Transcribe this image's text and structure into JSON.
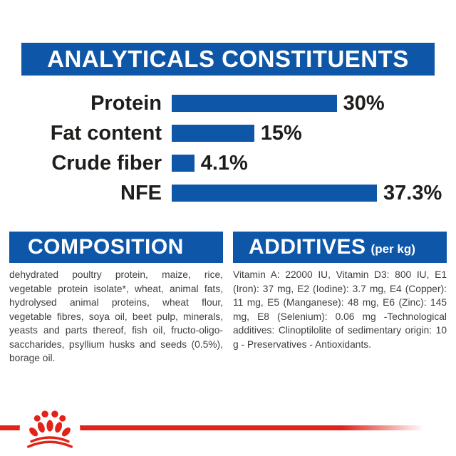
{
  "colors": {
    "blue": "#0e56a8",
    "red": "#e2231a",
    "heading_text": "#ffffff",
    "chart_text": "#1d1d1b",
    "body_text": "#3e3e3e"
  },
  "analyticals": {
    "title": "ANALYTICALS CONSTITUENTS"
  },
  "chart_data": {
    "type": "bar",
    "orientation": "horizontal",
    "categories": [
      "Protein",
      "Fat content",
      "Crude fiber",
      "NFE"
    ],
    "values": [
      30,
      15,
      4.1,
      37.3
    ],
    "value_labels": [
      "30%",
      "15%",
      "4.1%",
      "37.3%"
    ],
    "unit": "%",
    "xlim": [
      0,
      40
    ],
    "bar_color": "#0e56a8",
    "title": "ANALYTICALS CONSTITUENTS",
    "grid": false,
    "legend_position": "none"
  },
  "composition": {
    "title": "COMPOSITION",
    "text": "dehydrated poultry protein, maize, rice, vegetable protein isolate*, wheat, animal fats, hydrolysed animal proteins, wheat flour, vegetable fibres, soya oil, beet pulp, minerals, yeasts and parts thereof, fish oil, fructo-oligo-saccharides, psyllium husks and seeds (0.5%), borage oil."
  },
  "additives": {
    "title": "ADDITIVES",
    "unit_note": "(per kg)",
    "text": "Vitamin A: 22000 IU, Vitamin D3: 800 IU, E1 (Iron): 37 mg, E2 (Iodine): 3.7 mg, E4 (Copper): 11 mg, E5 (Manganese): 48 mg, E6 (Zinc): 145 mg, E8 (Selenium): 0.06 mg -Technological additives: Clinoptilolite of sedimentary origin: 10 g - Preservatives - Antioxidants."
  },
  "footer": {
    "logo_name": "royal-canin-crown-logo"
  }
}
